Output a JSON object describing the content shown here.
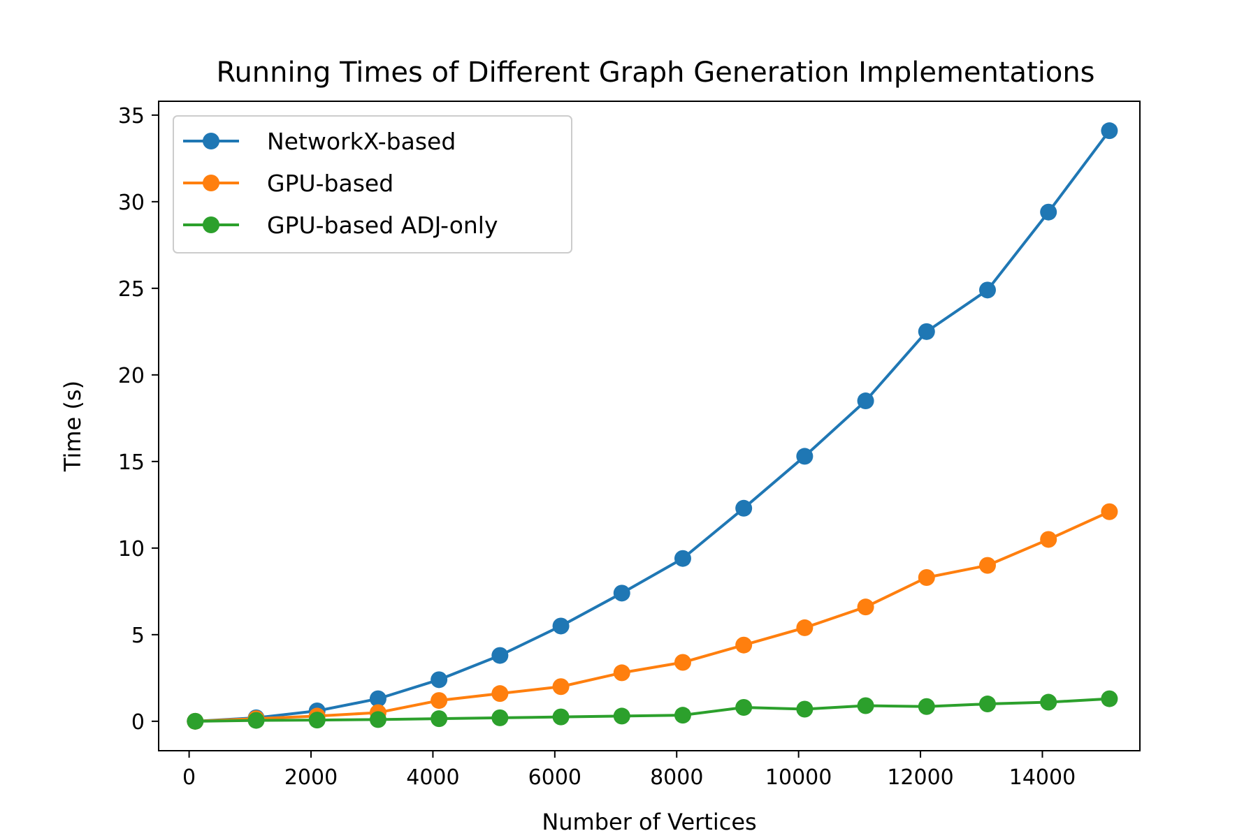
{
  "chart_data": {
    "type": "line",
    "title": "Running Times of Different Graph Generation Implementations",
    "xlabel": "Number of Vertices",
    "ylabel": "Time (s)",
    "xlim": [
      -500,
      15600
    ],
    "ylim": [
      -1.7,
      35.8
    ],
    "xticks": [
      0,
      2000,
      4000,
      6000,
      8000,
      10000,
      12000,
      14000
    ],
    "yticks": [
      0,
      5,
      10,
      15,
      20,
      25,
      30,
      35
    ],
    "grid": false,
    "legend_position": "top-left",
    "x": [
      100,
      1100,
      2100,
      3100,
      4100,
      5100,
      6100,
      7100,
      8100,
      9100,
      10100,
      11100,
      12100,
      13100,
      14100,
      15100
    ],
    "series": [
      {
        "name": "NetworkX-based",
        "color": "#1f77b4",
        "values": [
          0.0,
          0.2,
          0.6,
          1.3,
          2.4,
          3.8,
          5.5,
          7.4,
          9.4,
          12.3,
          15.3,
          18.5,
          22.5,
          24.9,
          29.4,
          34.1
        ]
      },
      {
        "name": "GPU-based",
        "color": "#ff7f0e",
        "values": [
          0.0,
          0.15,
          0.3,
          0.5,
          1.2,
          1.6,
          2.0,
          2.8,
          3.4,
          4.4,
          5.4,
          6.6,
          8.3,
          9.0,
          10.5,
          12.1
        ]
      },
      {
        "name": "GPU-based ADJ-only",
        "color": "#2ca02c",
        "values": [
          0.0,
          0.05,
          0.07,
          0.1,
          0.15,
          0.2,
          0.25,
          0.3,
          0.35,
          0.8,
          0.7,
          0.9,
          0.85,
          1.0,
          1.1,
          1.3
        ]
      }
    ]
  }
}
